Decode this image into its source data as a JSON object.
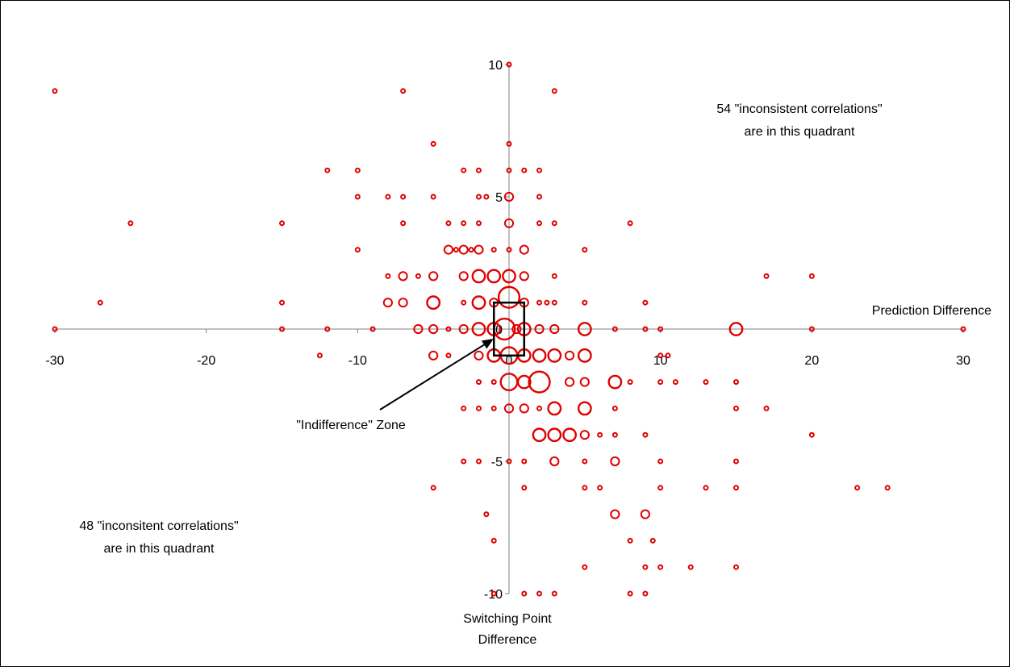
{
  "chart_data": {
    "type": "scatter",
    "title": "",
    "xlabel": "Prediction Difference",
    "ylabel_lines": [
      "Switching Point",
      "Difference"
    ],
    "xlim": [
      -30,
      30
    ],
    "ylim": [
      -10,
      10
    ],
    "x_ticks": [
      -30,
      -20,
      -10,
      0,
      10,
      20,
      30
    ],
    "y_ticks": [
      10,
      5,
      0,
      -5,
      -10
    ],
    "x_tick_labels": [
      "-30",
      "-20",
      "-10",
      "0",
      "10",
      "20",
      "30"
    ],
    "y_tick_labels": [
      "10",
      "5",
      "0",
      "-5",
      "-10"
    ],
    "grid": false,
    "legend": "none",
    "marker_color": "#e00000",
    "annotations": {
      "top_right": [
        "54 \"inconsistent correlations\"",
        "are in this quadrant"
      ],
      "bottom_left": [
        "48 \"inconsitent correlations\"",
        "are in this quadrant"
      ],
      "zone_label": "\"Indifference\" Zone"
    },
    "indifference_zone": {
      "x": [
        -1,
        1
      ],
      "y": [
        -1,
        1
      ]
    },
    "points": [
      {
        "x": 0,
        "y": 10,
        "s": 1
      },
      {
        "x": -30,
        "y": 9,
        "s": 1
      },
      {
        "x": -7,
        "y": 9,
        "s": 1
      },
      {
        "x": 3,
        "y": 9,
        "s": 1
      },
      {
        "x": -5,
        "y": 7,
        "s": 1
      },
      {
        "x": 0,
        "y": 7,
        "s": 1
      },
      {
        "x": -12,
        "y": 6,
        "s": 1
      },
      {
        "x": -10,
        "y": 6,
        "s": 1
      },
      {
        "x": -3,
        "y": 6,
        "s": 1
      },
      {
        "x": -2,
        "y": 6,
        "s": 1
      },
      {
        "x": 0,
        "y": 6,
        "s": 1
      },
      {
        "x": 1,
        "y": 6,
        "s": 1
      },
      {
        "x": 2,
        "y": 6,
        "s": 1
      },
      {
        "x": -10,
        "y": 5,
        "s": 1
      },
      {
        "x": -8,
        "y": 5,
        "s": 1
      },
      {
        "x": -7,
        "y": 5,
        "s": 1
      },
      {
        "x": -5,
        "y": 5,
        "s": 1
      },
      {
        "x": -2,
        "y": 5,
        "s": 1
      },
      {
        "x": -1.5,
        "y": 5,
        "s": 1
      },
      {
        "x": 0,
        "y": 5,
        "s": 2
      },
      {
        "x": 2,
        "y": 5,
        "s": 1
      },
      {
        "x": -25,
        "y": 4,
        "s": 1
      },
      {
        "x": -15,
        "y": 4,
        "s": 1
      },
      {
        "x": -7,
        "y": 4,
        "s": 1
      },
      {
        "x": -4,
        "y": 4,
        "s": 1
      },
      {
        "x": -3,
        "y": 4,
        "s": 1
      },
      {
        "x": -2,
        "y": 4,
        "s": 1
      },
      {
        "x": 0,
        "y": 4,
        "s": 2
      },
      {
        "x": 2,
        "y": 4,
        "s": 1
      },
      {
        "x": 3,
        "y": 4,
        "s": 1
      },
      {
        "x": 8,
        "y": 4,
        "s": 1
      },
      {
        "x": -10,
        "y": 3,
        "s": 1
      },
      {
        "x": -4,
        "y": 3,
        "s": 2
      },
      {
        "x": -3.5,
        "y": 3,
        "s": 1
      },
      {
        "x": -3,
        "y": 3,
        "s": 2
      },
      {
        "x": -2.5,
        "y": 3,
        "s": 1
      },
      {
        "x": -2,
        "y": 3,
        "s": 2
      },
      {
        "x": -1,
        "y": 3,
        "s": 1
      },
      {
        "x": 0,
        "y": 3,
        "s": 1
      },
      {
        "x": 1,
        "y": 3,
        "s": 2
      },
      {
        "x": 5,
        "y": 3,
        "s": 1
      },
      {
        "x": -8,
        "y": 2,
        "s": 1
      },
      {
        "x": -7,
        "y": 2,
        "s": 2
      },
      {
        "x": -6,
        "y": 2,
        "s": 1
      },
      {
        "x": -5,
        "y": 2,
        "s": 2
      },
      {
        "x": -3,
        "y": 2,
        "s": 2
      },
      {
        "x": -2,
        "y": 2,
        "s": 3
      },
      {
        "x": -1,
        "y": 2,
        "s": 3
      },
      {
        "x": 0,
        "y": 2,
        "s": 3
      },
      {
        "x": 1,
        "y": 2,
        "s": 2
      },
      {
        "x": 3,
        "y": 2,
        "s": 1
      },
      {
        "x": 17,
        "y": 2,
        "s": 1
      },
      {
        "x": 20,
        "y": 2,
        "s": 1
      },
      {
        "x": -27,
        "y": 1,
        "s": 1
      },
      {
        "x": -15,
        "y": 1,
        "s": 1
      },
      {
        "x": -8,
        "y": 1,
        "s": 2
      },
      {
        "x": -7,
        "y": 1,
        "s": 2
      },
      {
        "x": -5,
        "y": 1,
        "s": 3
      },
      {
        "x": -3,
        "y": 1,
        "s": 1
      },
      {
        "x": -2,
        "y": 1,
        "s": 3
      },
      {
        "x": -1,
        "y": 1,
        "s": 2
      },
      {
        "x": 0,
        "y": 1.2,
        "s": 5
      },
      {
        "x": 1,
        "y": 1,
        "s": 2
      },
      {
        "x": 2,
        "y": 1,
        "s": 1
      },
      {
        "x": 2.5,
        "y": 1,
        "s": 1
      },
      {
        "x": 3,
        "y": 1,
        "s": 1
      },
      {
        "x": 5,
        "y": 1,
        "s": 1
      },
      {
        "x": 9,
        "y": 1,
        "s": 1
      },
      {
        "x": -30,
        "y": 0,
        "s": 1
      },
      {
        "x": -15,
        "y": 0,
        "s": 1
      },
      {
        "x": -12,
        "y": 0,
        "s": 1
      },
      {
        "x": -9,
        "y": 0,
        "s": 1
      },
      {
        "x": -6,
        "y": 0,
        "s": 2
      },
      {
        "x": -5,
        "y": 0,
        "s": 2
      },
      {
        "x": -4,
        "y": 0,
        "s": 1
      },
      {
        "x": -3,
        "y": 0,
        "s": 2
      },
      {
        "x": -2,
        "y": 0,
        "s": 3
      },
      {
        "x": -1,
        "y": 0,
        "s": 3
      },
      {
        "x": -0.3,
        "y": 0,
        "s": 5
      },
      {
        "x": 0.5,
        "y": 0,
        "s": 2
      },
      {
        "x": 1,
        "y": 0,
        "s": 3
      },
      {
        "x": 2,
        "y": 0,
        "s": 2
      },
      {
        "x": 3,
        "y": 0,
        "s": 2
      },
      {
        "x": 5,
        "y": 0,
        "s": 3
      },
      {
        "x": 7,
        "y": 0,
        "s": 1
      },
      {
        "x": 9,
        "y": 0,
        "s": 1
      },
      {
        "x": 10,
        "y": 0,
        "s": 1
      },
      {
        "x": 15,
        "y": 0,
        "s": 3
      },
      {
        "x": 20,
        "y": 0,
        "s": 1
      },
      {
        "x": 30,
        "y": 0,
        "s": 1
      },
      {
        "x": -12.5,
        "y": -1,
        "s": 1
      },
      {
        "x": -5,
        "y": -1,
        "s": 2
      },
      {
        "x": -4,
        "y": -1,
        "s": 1
      },
      {
        "x": -2,
        "y": -1,
        "s": 2
      },
      {
        "x": -1,
        "y": -1,
        "s": 3
      },
      {
        "x": 0,
        "y": -1,
        "s": 4
      },
      {
        "x": 1,
        "y": -1,
        "s": 3
      },
      {
        "x": 2,
        "y": -1,
        "s": 3
      },
      {
        "x": 3,
        "y": -1,
        "s": 3
      },
      {
        "x": 4,
        "y": -1,
        "s": 2
      },
      {
        "x": 5,
        "y": -1,
        "s": 3
      },
      {
        "x": 10,
        "y": -1,
        "s": 1
      },
      {
        "x": 10.5,
        "y": -1,
        "s": 1
      },
      {
        "x": -2,
        "y": -2,
        "s": 1
      },
      {
        "x": -1,
        "y": -2,
        "s": 1
      },
      {
        "x": 0,
        "y": -2,
        "s": 4
      },
      {
        "x": 1,
        "y": -2,
        "s": 3
      },
      {
        "x": 2,
        "y": -2,
        "s": 5
      },
      {
        "x": 4,
        "y": -2,
        "s": 2
      },
      {
        "x": 5,
        "y": -2,
        "s": 2
      },
      {
        "x": 7,
        "y": -2,
        "s": 3
      },
      {
        "x": 8,
        "y": -2,
        "s": 1
      },
      {
        "x": 10,
        "y": -2,
        "s": 1
      },
      {
        "x": 11,
        "y": -2,
        "s": 1
      },
      {
        "x": 13,
        "y": -2,
        "s": 1
      },
      {
        "x": 15,
        "y": -2,
        "s": 1
      },
      {
        "x": -3,
        "y": -3,
        "s": 1
      },
      {
        "x": -2,
        "y": -3,
        "s": 1
      },
      {
        "x": -1,
        "y": -3,
        "s": 1
      },
      {
        "x": 0,
        "y": -3,
        "s": 2
      },
      {
        "x": 1,
        "y": -3,
        "s": 2
      },
      {
        "x": 2,
        "y": -3,
        "s": 1
      },
      {
        "x": 3,
        "y": -3,
        "s": 3
      },
      {
        "x": 5,
        "y": -3,
        "s": 3
      },
      {
        "x": 7,
        "y": -3,
        "s": 1
      },
      {
        "x": 15,
        "y": -3,
        "s": 1
      },
      {
        "x": 17,
        "y": -3,
        "s": 1
      },
      {
        "x": 2,
        "y": -4,
        "s": 3
      },
      {
        "x": 3,
        "y": -4,
        "s": 3
      },
      {
        "x": 4,
        "y": -4,
        "s": 3
      },
      {
        "x": 5,
        "y": -4,
        "s": 2
      },
      {
        "x": 6,
        "y": -4,
        "s": 1
      },
      {
        "x": 7,
        "y": -4,
        "s": 1
      },
      {
        "x": 9,
        "y": -4,
        "s": 1
      },
      {
        "x": 20,
        "y": -4,
        "s": 1
      },
      {
        "x": -3,
        "y": -5,
        "s": 1
      },
      {
        "x": -2,
        "y": -5,
        "s": 1
      },
      {
        "x": 0,
        "y": -5,
        "s": 1
      },
      {
        "x": 1,
        "y": -5,
        "s": 1
      },
      {
        "x": 3,
        "y": -5,
        "s": 2
      },
      {
        "x": 5,
        "y": -5,
        "s": 1
      },
      {
        "x": 7,
        "y": -5,
        "s": 2
      },
      {
        "x": 10,
        "y": -5,
        "s": 1
      },
      {
        "x": 15,
        "y": -5,
        "s": 1
      },
      {
        "x": -5,
        "y": -6,
        "s": 1
      },
      {
        "x": 1,
        "y": -6,
        "s": 1
      },
      {
        "x": 5,
        "y": -6,
        "s": 1
      },
      {
        "x": 6,
        "y": -6,
        "s": 1
      },
      {
        "x": 10,
        "y": -6,
        "s": 1
      },
      {
        "x": 13,
        "y": -6,
        "s": 1
      },
      {
        "x": 15,
        "y": -6,
        "s": 1
      },
      {
        "x": 23,
        "y": -6,
        "s": 1
      },
      {
        "x": 25,
        "y": -6,
        "s": 1
      },
      {
        "x": -1.5,
        "y": -7,
        "s": 1
      },
      {
        "x": 7,
        "y": -7,
        "s": 2
      },
      {
        "x": 9,
        "y": -7,
        "s": 2
      },
      {
        "x": -1,
        "y": -8,
        "s": 1
      },
      {
        "x": 8,
        "y": -8,
        "s": 1
      },
      {
        "x": 9.5,
        "y": -8,
        "s": 1
      },
      {
        "x": 5,
        "y": -9,
        "s": 1
      },
      {
        "x": 9,
        "y": -9,
        "s": 1
      },
      {
        "x": 10,
        "y": -9,
        "s": 1
      },
      {
        "x": 12,
        "y": -9,
        "s": 1
      },
      {
        "x": 15,
        "y": -9,
        "s": 1
      },
      {
        "x": -1,
        "y": -10,
        "s": 1
      },
      {
        "x": 1,
        "y": -10,
        "s": 1
      },
      {
        "x": 2,
        "y": -10,
        "s": 1
      },
      {
        "x": 3,
        "y": -10,
        "s": 1
      },
      {
        "x": 8,
        "y": -10,
        "s": 1
      },
      {
        "x": 9,
        "y": -10,
        "s": 1
      }
    ]
  }
}
